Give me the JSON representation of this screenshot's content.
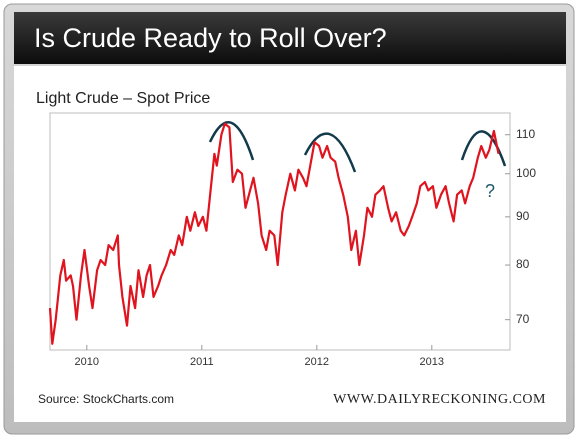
{
  "chart_data": {
    "type": "line",
    "title": "Is Crude Ready to Roll Over?",
    "subtitle": "Light Crude – Spot Price",
    "source": "Source: StockCharts.com",
    "brand": "WWW.DAILYRECKONING.COM",
    "annotations": [
      "?"
    ],
    "log_scale": true,
    "grid": false,
    "xlim": [
      2009.68,
      2013.68
    ],
    "xticks": [
      2010,
      2011,
      2012,
      2013
    ],
    "ylim": [
      65,
      116
    ],
    "yticks": [
      70,
      80,
      90,
      100,
      110
    ],
    "x": [
      2009.68,
      2009.7,
      2009.73,
      2009.77,
      2009.8,
      2009.82,
      2009.86,
      2009.88,
      2009.91,
      2009.95,
      2009.98,
      2010.02,
      2010.05,
      2010.09,
      2010.12,
      2010.16,
      2010.19,
      2010.23,
      2010.27,
      2010.28,
      2010.31,
      2010.35,
      2010.38,
      2010.42,
      2010.45,
      2010.49,
      2010.52,
      2010.55,
      2010.58,
      2010.62,
      2010.65,
      2010.69,
      2010.73,
      2010.76,
      2010.8,
      2010.83,
      2010.87,
      2010.9,
      2010.94,
      2010.97,
      2011.01,
      2011.04,
      2011.08,
      2011.11,
      2011.13,
      2011.17,
      2011.2,
      2011.24,
      2011.27,
      2011.31,
      2011.35,
      2011.38,
      2011.42,
      2011.45,
      2011.49,
      2011.52,
      2011.56,
      2011.59,
      2011.63,
      2011.66,
      2011.7,
      2011.73,
      2011.77,
      2011.81,
      2011.84,
      2011.88,
      2011.91,
      2011.95,
      2011.98,
      2012.02,
      2012.05,
      2012.09,
      2012.12,
      2012.16,
      2012.19,
      2012.23,
      2012.27,
      2012.3,
      2012.34,
      2012.37,
      2012.41,
      2012.44,
      2012.48,
      2012.51,
      2012.55,
      2012.58,
      2012.62,
      2012.65,
      2012.69,
      2012.73,
      2012.76,
      2012.8,
      2012.83,
      2012.87,
      2012.9,
      2012.94,
      2012.97,
      2013.01,
      2013.04,
      2013.08,
      2013.12,
      2013.15,
      2013.19,
      2013.22,
      2013.26,
      2013.29,
      2013.33,
      2013.36,
      2013.4,
      2013.43,
      2013.47,
      2013.5,
      2013.54,
      2013.58
    ],
    "series": [
      {
        "name": "Light Crude",
        "color": "#e0141e",
        "values": [
          72,
          66,
          70,
          78,
          81,
          77,
          78,
          76,
          70,
          78,
          83,
          76,
          72,
          79,
          81,
          80,
          84,
          83,
          86,
          80,
          74,
          69,
          76,
          72,
          79,
          74,
          78,
          80,
          74,
          76,
          78,
          80,
          83,
          82,
          86,
          84,
          90,
          87,
          91,
          88,
          90,
          87,
          97,
          105,
          102,
          110,
          113,
          112,
          98,
          101,
          100,
          92,
          96,
          99,
          93,
          86,
          83,
          87,
          86,
          80,
          91,
          95,
          100,
          96,
          101,
          99,
          97,
          103,
          108,
          107,
          104,
          107,
          104,
          103,
          99,
          95,
          90,
          83,
          87,
          80,
          86,
          92,
          90,
          95,
          96,
          97,
          92,
          89,
          91,
          87,
          86,
          88,
          90,
          93,
          97,
          98,
          96,
          97,
          92,
          95,
          97,
          93,
          89,
          95,
          96,
          93,
          97,
          99,
          104,
          107,
          104,
          106,
          111,
          105
        ]
      }
    ]
  }
}
